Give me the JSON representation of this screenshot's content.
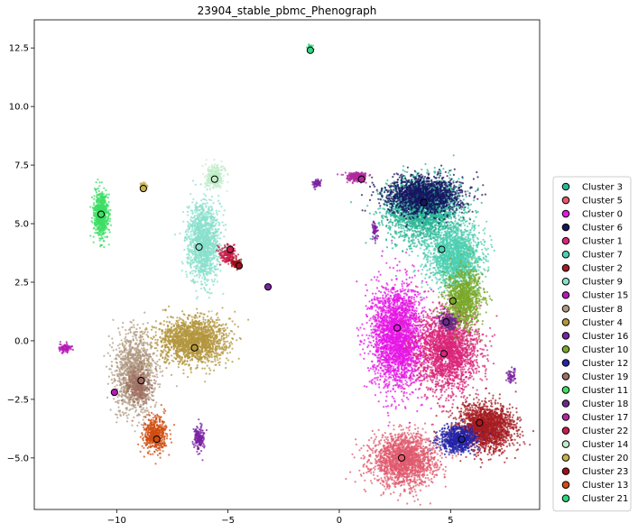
{
  "chart_data": {
    "type": "scatter",
    "title": "23904_stable_pbmc_Phenograph",
    "xlabel": "",
    "ylabel": "",
    "xlim": [
      -13.7,
      9.0
    ],
    "ylim": [
      -7.2,
      13.7
    ],
    "x_ticks": [
      -10,
      -5,
      0,
      5
    ],
    "x_tick_labels": [
      "−10",
      "−5",
      "0",
      "5"
    ],
    "y_ticks": [
      -5.0,
      -2.5,
      0.0,
      2.5,
      5.0,
      7.5,
      10.0,
      12.5
    ],
    "y_tick_labels": [
      "−5.0",
      "−2.5",
      "0.0",
      "2.5",
      "5.0",
      "7.5",
      "10.0",
      "12.5"
    ],
    "grid": false,
    "legend_position": "right",
    "series": [
      {
        "name": "Cluster 3",
        "color": "#2bb596",
        "centroid": [
          3.8,
          5.9
        ],
        "blobs": [
          [
            3.8,
            5.6,
            1.8,
            1.5,
            2200
          ]
        ]
      },
      {
        "name": "Cluster 5",
        "color": "#e05a6e",
        "centroid": [
          2.8,
          -5.0
        ],
        "blobs": [
          [
            2.9,
            -5.1,
            1.6,
            1.2,
            1800
          ]
        ]
      },
      {
        "name": "Cluster 0",
        "color": "#e617e6",
        "centroid": [
          2.6,
          0.55
        ],
        "blobs": [
          [
            2.6,
            0.2,
            1.25,
            2.4,
            2600
          ]
        ]
      },
      {
        "name": "Cluster 6",
        "color": "#161660",
        "centroid": [
          3.8,
          5.9
        ],
        "blobs": [
          [
            3.8,
            6.2,
            1.9,
            0.9,
            1500
          ]
        ]
      },
      {
        "name": "Cluster 1",
        "color": "#d9257a",
        "centroid": [
          4.7,
          -0.55
        ],
        "blobs": [
          [
            4.9,
            -0.4,
            1.5,
            1.9,
            2200
          ]
        ]
      },
      {
        "name": "Cluster 7",
        "color": "#4ecfb2",
        "centroid": [
          4.6,
          3.9
        ],
        "blobs": [
          [
            5.2,
            3.6,
            1.3,
            1.4,
            1700
          ]
        ]
      },
      {
        "name": "Cluster 2",
        "color": "#a51c22",
        "centroid": [
          6.3,
          -3.5
        ],
        "blobs": [
          [
            6.6,
            -3.7,
            1.4,
            1.1,
            1800
          ]
        ]
      },
      {
        "name": "Cluster 9",
        "color": "#88e0cc",
        "centroid": [
          -6.3,
          4.0
        ],
        "blobs": [
          [
            -6.1,
            4.2,
            0.8,
            1.8,
            1400
          ]
        ]
      },
      {
        "name": "Cluster 15",
        "color": "#b41ab4",
        "centroid": [
          -10.1,
          -2.2
        ],
        "blobs": [
          [
            -12.3,
            -0.3,
            0.3,
            0.2,
            90
          ]
        ]
      },
      {
        "name": "Cluster 8",
        "color": "#b09a82",
        "centroid": [
          -8.9,
          -1.7
        ],
        "blobs": [
          [
            -9.2,
            -1.4,
            1.0,
            1.9,
            1300
          ]
        ]
      },
      {
        "name": "Cluster 4",
        "color": "#b3963c",
        "centroid": [
          -6.5,
          -0.3
        ],
        "blobs": [
          [
            -6.6,
            0.0,
            1.7,
            1.1,
            1700
          ]
        ]
      },
      {
        "name": "Cluster 16",
        "color": "#7a22a2",
        "centroid": [
          -3.2,
          2.3
        ],
        "blobs": [
          [
            -6.3,
            -4.2,
            0.25,
            0.6,
            160
          ],
          [
            -1.0,
            6.7,
            0.2,
            0.2,
            60
          ],
          [
            1.6,
            4.7,
            0.15,
            0.5,
            60
          ],
          [
            7.7,
            -1.5,
            0.2,
            0.35,
            60
          ]
        ]
      },
      {
        "name": "Cluster 10",
        "color": "#7aa82a",
        "centroid": [
          5.1,
          1.7
        ],
        "blobs": [
          [
            5.6,
            1.8,
            0.9,
            1.4,
            1000
          ]
        ]
      },
      {
        "name": "Cluster 12",
        "color": "#2424a8",
        "centroid": [
          5.5,
          -4.2
        ],
        "blobs": [
          [
            5.3,
            -4.2,
            0.9,
            0.6,
            700
          ]
        ]
      },
      {
        "name": "Cluster 19",
        "color": "#9e6e62",
        "centroid": [
          -8.9,
          -1.7
        ],
        "blobs": [
          [
            -9.0,
            -1.9,
            0.6,
            0.8,
            300
          ]
        ]
      },
      {
        "name": "Cluster 11",
        "color": "#3cde64",
        "centroid": [
          -10.7,
          5.4
        ],
        "blobs": [
          [
            -10.7,
            5.4,
            0.35,
            1.0,
            700
          ]
        ]
      },
      {
        "name": "Cluster 18",
        "color": "#6a2a8a",
        "centroid": [
          4.8,
          0.8
        ],
        "blobs": [
          [
            4.9,
            0.8,
            0.4,
            0.4,
            200
          ]
        ]
      },
      {
        "name": "Cluster 17",
        "color": "#b02a9e",
        "centroid": [
          1.0,
          6.9
        ],
        "blobs": [
          [
            0.8,
            7.0,
            0.5,
            0.2,
            250
          ]
        ]
      },
      {
        "name": "Cluster 22",
        "color": "#c81e4a",
        "centroid": [
          -4.9,
          3.9
        ],
        "blobs": [
          [
            -5.0,
            3.7,
            0.4,
            0.4,
            200
          ]
        ]
      },
      {
        "name": "Cluster 14",
        "color": "#c0ecc8",
        "centroid": [
          -5.6,
          6.9
        ],
        "blobs": [
          [
            -5.6,
            7.0,
            0.45,
            0.55,
            300
          ]
        ]
      },
      {
        "name": "Cluster 20",
        "color": "#c8b050",
        "centroid": [
          -8.8,
          6.5
        ],
        "blobs": [
          [
            -8.8,
            6.6,
            0.2,
            0.15,
            60
          ]
        ]
      },
      {
        "name": "Cluster 23",
        "color": "#9e1018",
        "centroid": [
          -4.5,
          3.2
        ],
        "blobs": [
          [
            -4.6,
            3.3,
            0.25,
            0.2,
            80
          ]
        ]
      },
      {
        "name": "Cluster 13",
        "color": "#d04e10",
        "centroid": [
          -8.2,
          -4.2
        ],
        "blobs": [
          [
            -8.3,
            -4.0,
            0.6,
            0.8,
            500
          ]
        ]
      },
      {
        "name": "Cluster 21",
        "color": "#30d480",
        "centroid": [
          -1.3,
          12.4
        ],
        "blobs": [
          [
            -1.3,
            12.5,
            0.12,
            0.2,
            60
          ]
        ]
      }
    ]
  }
}
